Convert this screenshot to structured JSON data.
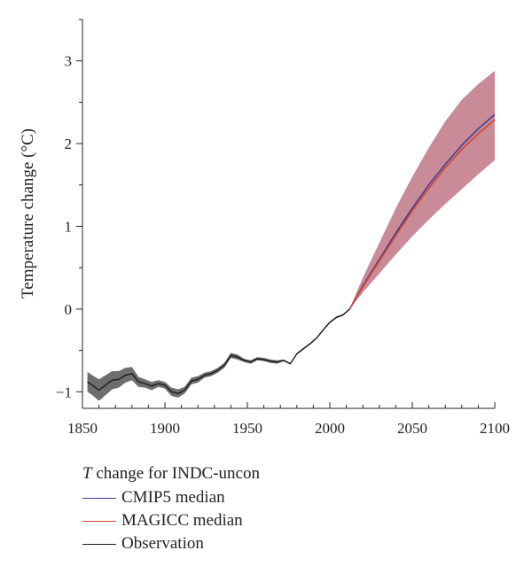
{
  "chart_data": {
    "type": "line",
    "xlabel": "",
    "ylabel": "Temperature change (°C)",
    "xlim": [
      1850,
      2100
    ],
    "ylim": [
      -1.2,
      3.5
    ],
    "x_ticks": [
      1850,
      1900,
      1950,
      2000,
      2050,
      2100
    ],
    "y_ticks": [
      -1,
      0,
      1,
      2,
      3
    ],
    "x_minor_step": 10,
    "y_minor_step": 0.5,
    "grid": false,
    "legend_position": "below",
    "legend_title_var": "T",
    "legend_title_rest": " change for INDC-uncon",
    "band": {
      "color": "#c98b97",
      "x": [
        2012,
        2020,
        2030,
        2040,
        2050,
        2060,
        2070,
        2080,
        2090,
        2100
      ],
      "lower": [
        0.0,
        0.2,
        0.43,
        0.66,
        0.88,
        1.08,
        1.27,
        1.45,
        1.63,
        1.8
      ],
      "upper": [
        0.0,
        0.38,
        0.8,
        1.22,
        1.6,
        1.95,
        2.27,
        2.53,
        2.72,
        2.88
      ]
    },
    "series": [
      {
        "name": "CMIP5 median",
        "color": "#3d3d9a",
        "x": [
          2012,
          2020,
          2030,
          2040,
          2050,
          2060,
          2070,
          2080,
          2090,
          2100
        ],
        "y": [
          0.0,
          0.28,
          0.6,
          0.92,
          1.22,
          1.5,
          1.75,
          1.98,
          2.18,
          2.35
        ]
      },
      {
        "name": "MAGICC median",
        "color": "#d6432b",
        "x": [
          2012,
          2020,
          2030,
          2040,
          2050,
          2060,
          2070,
          2080,
          2090,
          2100
        ],
        "y": [
          0.0,
          0.27,
          0.58,
          0.89,
          1.19,
          1.46,
          1.71,
          1.93,
          2.12,
          2.29
        ]
      },
      {
        "name": "Observation",
        "color": "#1a1a1a",
        "band_color": "#6e6e6e",
        "x": [
          1853,
          1856,
          1860,
          1864,
          1868,
          1872,
          1876,
          1880,
          1884,
          1888,
          1892,
          1896,
          1900,
          1904,
          1908,
          1912,
          1916,
          1920,
          1924,
          1928,
          1932,
          1936,
          1940,
          1944,
          1948,
          1952,
          1956,
          1960,
          1964,
          1968,
          1972,
          1976,
          1980,
          1984,
          1988,
          1992,
          1996,
          2000,
          2004,
          2008,
          2012
        ],
        "y": [
          -0.88,
          -0.92,
          -0.98,
          -0.92,
          -0.86,
          -0.85,
          -0.8,
          -0.78,
          -0.88,
          -0.9,
          -0.93,
          -0.9,
          -0.92,
          -1.0,
          -1.02,
          -0.98,
          -0.87,
          -0.85,
          -0.8,
          -0.78,
          -0.74,
          -0.68,
          -0.56,
          -0.58,
          -0.62,
          -0.64,
          -0.6,
          -0.61,
          -0.63,
          -0.64,
          -0.62,
          -0.66,
          -0.54,
          -0.48,
          -0.42,
          -0.35,
          -0.25,
          -0.16,
          -0.1,
          -0.07,
          0.0
        ],
        "err": [
          0.12,
          0.12,
          0.13,
          0.12,
          0.11,
          0.1,
          0.09,
          0.08,
          0.06,
          0.05,
          0.05,
          0.04,
          0.04,
          0.05,
          0.05,
          0.04,
          0.04,
          0.04,
          0.03,
          0.03,
          0.03,
          0.03,
          0.03,
          0.03,
          0.02,
          0.02,
          0.02,
          0.02,
          0.02,
          0.02,
          0.01,
          0.01,
          0.01,
          0.01,
          0.01,
          0.01,
          0.01,
          0.01,
          0.01,
          0.01,
          0.01
        ]
      }
    ]
  }
}
